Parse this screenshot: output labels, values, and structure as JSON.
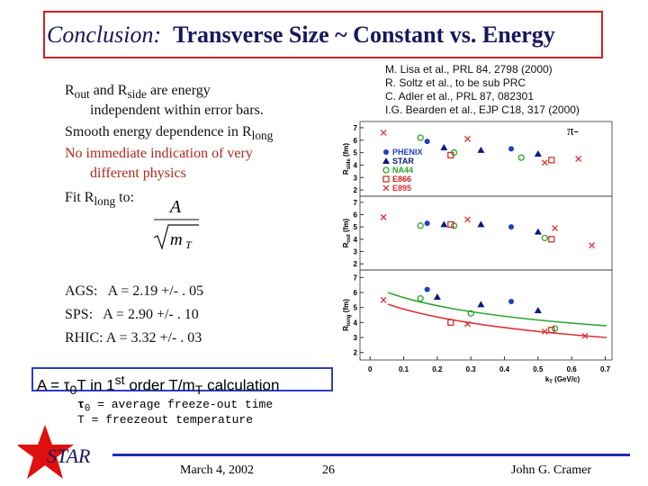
{
  "header": {
    "title_italic": "Conclusion:",
    "title_bold": "Transverse Size ~ Constant vs. Energy"
  },
  "references": [
    "M. Lisa et al., PRL 84, 2798 (2000)",
    "R. Soltz et al., to be sub PRC",
    "C. Adler et al., PRL 87, 082301",
    "I.G. Bearden et al., EJP C18, 317 (2000)"
  ],
  "body": {
    "line1": {
      "r1": "R",
      "s1": "out",
      "mid": " and R",
      "s2": "side",
      "end": " are energy"
    },
    "line2": "independent within error bars.",
    "line3": {
      "text": "Smooth energy dependence in R",
      "sub": "long"
    },
    "line4": "No immediate indication of very",
    "line5": "different physics",
    "line6": {
      "text": "Fit R",
      "sub": "long",
      "end": " to:"
    },
    "formula": {
      "numerator": "A",
      "denominator": "m",
      "denominator_sub": "T"
    },
    "fits": [
      "AGS:   A = 2.19 +/- . 05",
      "SPS:   A = 2.90 +/- . 10",
      "RHIC: A = 3.32 +/- . 03"
    ]
  },
  "callout": {
    "a": "A = ",
    "tau": "τ",
    "tau_sub": "0",
    "b": "T in 1",
    "sup": "st",
    "c": " order T/m",
    "sub": "T",
    "d": " calculation"
  },
  "notes": {
    "tau": "τ",
    "tau_sub": "0",
    "line1": " = average freeze-out time",
    "line2": "T = freezeout temperature"
  },
  "footer": {
    "logo": "STAR",
    "date": "March 4, 2002",
    "page": "26",
    "author": "John G. Cramer"
  },
  "plot": {
    "particle": "π-",
    "x_label": "k",
    "x_label_sub": "T",
    "x_label_end": " (GeV/c)",
    "xlim": [
      -0.03,
      0.72
    ],
    "xticks": [
      0,
      0.1,
      0.2,
      0.3,
      0.4,
      0.5,
      0.6,
      0.7
    ],
    "ylim": [
      1.5,
      7.5
    ],
    "yticks": [
      2,
      3,
      4,
      5,
      6,
      7
    ],
    "legend": [
      {
        "name": "PHENIX",
        "color": "#1f3fbf"
      },
      {
        "name": "STAR",
        "color": "#0a1a80"
      },
      {
        "name": "NA44",
        "color": "#2aa52a"
      },
      {
        "name": "E866",
        "color": "#cc2222"
      },
      {
        "name": "E895",
        "color": "#dd3333"
      }
    ],
    "panels": [
      {
        "label": "R",
        "label_sub": "side",
        "label_end": " (fm)",
        "series": [
          [
            [
              0.17,
              5.9
            ],
            [
              0.42,
              5.3
            ]
          ],
          [
            [
              0.22,
              5.4
            ],
            [
              0.33,
              5.2
            ],
            [
              0.5,
              4.9
            ]
          ],
          [
            [
              0.15,
              6.2
            ],
            [
              0.25,
              5.0
            ],
            [
              0.45,
              4.6
            ]
          ],
          [
            [
              0.24,
              4.8
            ],
            [
              0.54,
              4.4
            ]
          ],
          [
            [
              0.04,
              6.6
            ],
            [
              0.29,
              6.1
            ],
            [
              0.52,
              4.2
            ],
            [
              0.62,
              4.5
            ]
          ]
        ]
      },
      {
        "label": "R",
        "label_sub": "out",
        "label_end": " (fm)",
        "series": [
          [
            [
              0.17,
              5.3
            ],
            [
              0.42,
              5.0
            ]
          ],
          [
            [
              0.22,
              5.2
            ],
            [
              0.33,
              5.2
            ],
            [
              0.5,
              4.6
            ]
          ],
          [
            [
              0.15,
              5.1
            ],
            [
              0.25,
              5.1
            ],
            [
              0.52,
              4.1
            ]
          ],
          [
            [
              0.24,
              5.2
            ],
            [
              0.54,
              4.0
            ]
          ],
          [
            [
              0.04,
              5.8
            ],
            [
              0.29,
              5.6
            ],
            [
              0.55,
              4.9
            ],
            [
              0.66,
              3.5
            ]
          ]
        ]
      },
      {
        "label": "R",
        "label_sub": "long",
        "label_end": " (fm)",
        "series": [
          [
            [
              0.17,
              6.2
            ],
            [
              0.42,
              5.4
            ]
          ],
          [
            [
              0.2,
              5.7
            ],
            [
              0.33,
              5.2
            ],
            [
              0.5,
              4.8
            ]
          ],
          [
            [
              0.15,
              5.6
            ],
            [
              0.3,
              4.6
            ],
            [
              0.55,
              3.6
            ]
          ],
          [
            [
              0.24,
              4.0
            ],
            [
              0.54,
              3.5
            ]
          ],
          [
            [
              0.04,
              5.5
            ],
            [
              0.29,
              3.9
            ],
            [
              0.52,
              3.4
            ],
            [
              0.64,
              3.1
            ]
          ]
        ]
      }
    ]
  }
}
